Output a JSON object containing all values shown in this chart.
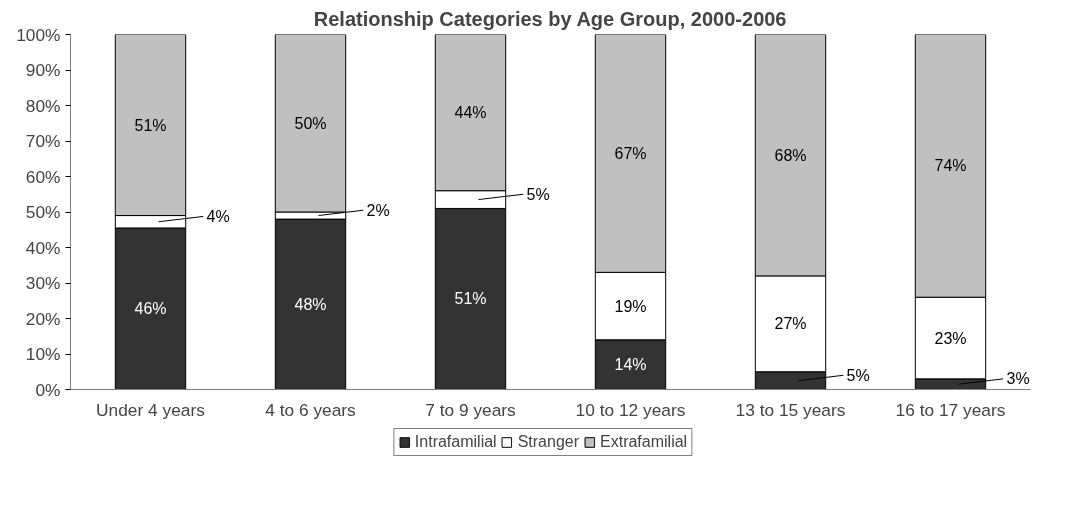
{
  "chart_data": {
    "type": "bar",
    "stacked": true,
    "title": "Relationship Categories by Age Group, 2000-2006",
    "categories": [
      "Under 4 years",
      "4 to 6 years",
      "7 to 9 years",
      "10 to 12 years",
      "13 to 15 years",
      "16 to 17 years"
    ],
    "series": [
      {
        "name": "Intrafamilial",
        "color": "#333333",
        "values": [
          45.5,
          48,
          51,
          14,
          5,
          3
        ],
        "value_labels": [
          "46%",
          "48%",
          "51%",
          "14%",
          "5%",
          "3%"
        ]
      },
      {
        "name": "Stranger",
        "color": "#ffffff",
        "values": [
          3.5,
          2,
          5,
          19,
          27,
          23
        ],
        "value_labels": [
          "4%",
          "2%",
          "5%",
          "19%",
          "27%",
          "23%"
        ]
      },
      {
        "name": "Extrafamilial",
        "color": "#c0c0c0",
        "values": [
          51,
          50,
          44,
          67,
          68,
          74
        ],
        "value_labels": [
          "51%",
          "50%",
          "44%",
          "67%",
          "68%",
          "74%"
        ]
      }
    ],
    "ylim": [
      0,
      100
    ],
    "yticks": [
      {
        "value": 0,
        "label": "0%"
      },
      {
        "value": 10,
        "label": "10%"
      },
      {
        "value": 20,
        "label": "20%"
      },
      {
        "value": 30,
        "label": "30%"
      },
      {
        "value": 40,
        "label": "40%"
      },
      {
        "value": 50,
        "label": "50%"
      },
      {
        "value": 60,
        "label": "60%"
      },
      {
        "value": 70,
        "label": "70%"
      },
      {
        "value": 80,
        "label": "80%"
      },
      {
        "value": 90,
        "label": "90%"
      },
      {
        "value": 100,
        "label": "100%"
      }
    ],
    "grid": false,
    "legend": "bottom"
  }
}
